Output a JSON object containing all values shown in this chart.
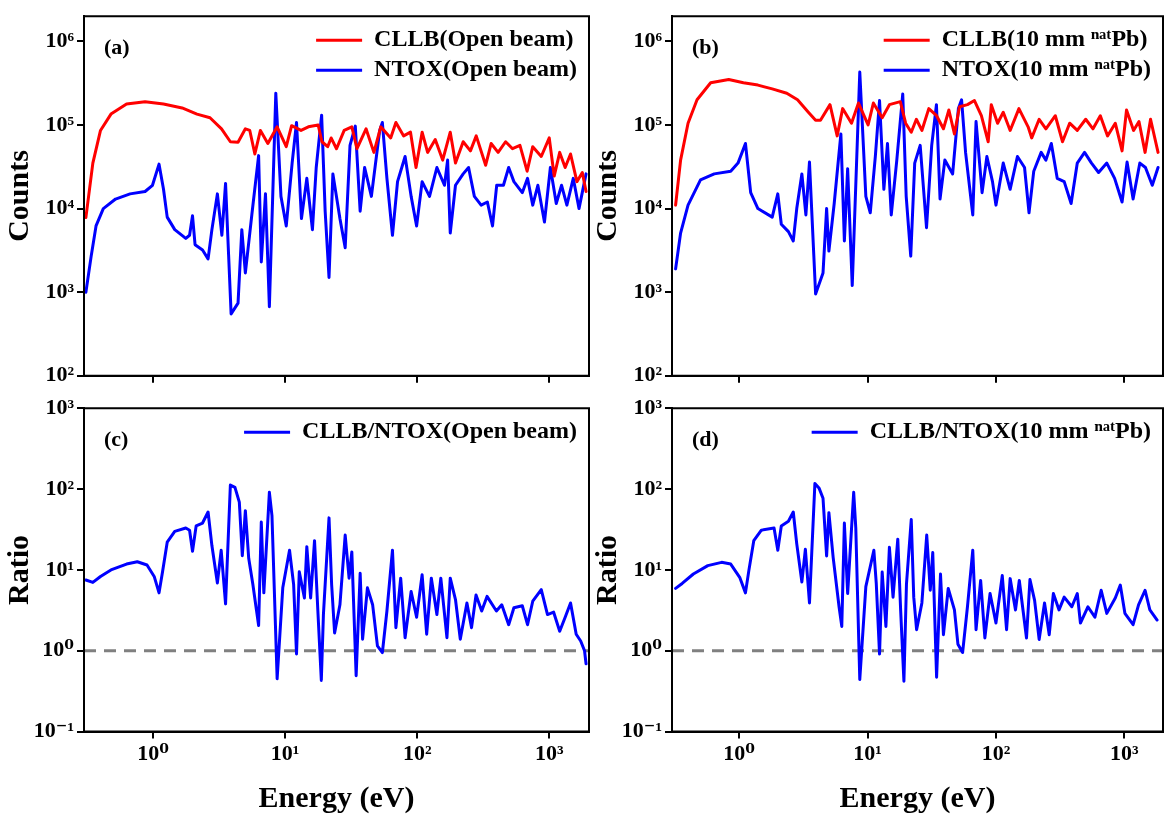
{
  "chart_data": [
    {
      "type": "line",
      "annotations": [
        "(a)"
      ],
      "ylabel": "Counts",
      "log": "xy",
      "legend": "top right",
      "tick_labels": "y",
      "xlim": [
        0.3,
        2000
      ],
      "xticks": [
        {
          "value": 1,
          "label": null
        },
        {
          "value": 10,
          "label": null
        },
        {
          "value": 100,
          "label": null
        },
        {
          "value": 1000,
          "label": null
        }
      ],
      "ylim": [
        100,
        2000000
      ],
      "yticks": [
        {
          "value": 100,
          "label": "10²"
        },
        {
          "value": 1000,
          "label": "10³"
        },
        {
          "value": 10000,
          "label": "10⁴"
        },
        {
          "value": 100000,
          "label": "10⁵"
        },
        {
          "value": 1000000,
          "label": "10⁶"
        }
      ],
      "series": [
        {
          "name": "CLLB(Open beam)",
          "color": "#ff0000",
          "x": [
            0.31,
            0.35,
            0.4,
            0.48,
            0.63,
            0.87,
            1.2,
            1.66,
            2.15,
            2.7,
            3.3,
            3.85,
            4.4,
            5.0,
            5.4,
            5.9,
            6.5,
            7.4,
            8.7,
            10.2,
            11.2,
            13.2,
            15,
            17.8,
            19,
            21,
            22.3,
            24.5,
            28,
            32,
            35,
            41,
            47,
            53,
            63,
            69,
            79,
            89,
            98,
            109,
            120,
            137,
            156,
            178,
            195,
            223,
            253,
            280,
            330,
            363,
            410,
            467,
            527,
            600,
            680,
            750,
            870,
            1000,
            1090,
            1200,
            1320,
            1450,
            1620,
            1780,
            1900
          ],
          "values": [
            7800,
            35000,
            86000,
            135000,
            178000,
            190000,
            178000,
            160000,
            135000,
            122000,
            90000,
            63000,
            62000,
            90000,
            86000,
            45000,
            86000,
            60000,
            95000,
            55000,
            98000,
            86000,
            95000,
            100000,
            63000,
            55000,
            70000,
            52000,
            86000,
            95000,
            52000,
            90000,
            47000,
            95000,
            70000,
            107000,
            74000,
            82000,
            31000,
            82000,
            47000,
            67000,
            38000,
            82000,
            35000,
            63000,
            49000,
            74000,
            33000,
            60000,
            47000,
            63000,
            52000,
            57000,
            28000,
            55000,
            42000,
            70000,
            24500,
            47000,
            31000,
            45000,
            21000,
            27000,
            16000
          ]
        },
        {
          "name": "NTOX(Open beam)",
          "color": "#0000ff",
          "x": [
            0.31,
            0.34,
            0.37,
            0.42,
            0.52,
            0.67,
            0.87,
            0.99,
            1.11,
            1.2,
            1.28,
            1.46,
            1.77,
            1.89,
            1.99,
            2.08,
            2.37,
            2.61,
            2.79,
            3.07,
            3.32,
            3.54,
            3.9,
            4.4,
            4.7,
            5.0,
            5.6,
            6.3,
            6.6,
            7.1,
            7.6,
            8.5,
            9.3,
            10.2,
            11.3,
            12.2,
            13.3,
            14.6,
            16.1,
            17.2,
            18.9,
            20.1,
            21.5,
            23,
            26,
            28.5,
            31,
            34,
            37,
            40,
            45,
            52,
            54.5,
            59,
            65,
            71,
            81,
            90,
            99,
            109,
            124,
            141,
            161,
            170,
            178,
            195,
            223,
            245,
            271,
            305,
            340,
            372,
            400,
            450,
            493,
            540,
            625,
            685,
            750,
            820,
            920,
            1020,
            1130,
            1240,
            1360,
            1520,
            1680,
            1900
          ],
          "values": [
            1000,
            2700,
            6200,
            10000,
            13000,
            15000,
            16000,
            19000,
            34000,
            17000,
            7900,
            5600,
            4400,
            4800,
            8200,
            3700,
            3200,
            2500,
            5600,
            15000,
            4800,
            20000,
            550,
            740,
            5600,
            1700,
            8500,
            43000,
            2300,
            15000,
            670,
            240000,
            14000,
            6200,
            35000,
            107000,
            7600,
            23000,
            5600,
            31000,
            131000,
            9300,
            1500,
            26000,
            7600,
            3400,
            57000,
            97000,
            9300,
            31000,
            14000,
            86000,
            107000,
            23000,
            4800,
            21000,
            42000,
            14000,
            6200,
            21000,
            14000,
            31000,
            19000,
            38000,
            5100,
            19000,
            26000,
            31000,
            14000,
            11000,
            12000,
            6200,
            19000,
            19000,
            31000,
            21000,
            15500,
            23000,
            11000,
            19000,
            6900,
            31000,
            11500,
            19000,
            11000,
            23000,
            10000,
            26000
          ]
        }
      ]
    },
    {
      "type": "line",
      "annotations": [
        "(b)"
      ],
      "ylabel": "Counts",
      "log": "xy",
      "legend": "top right",
      "tick_labels": "y",
      "xlim": [
        0.3,
        2000
      ],
      "xticks": [
        {
          "value": 1,
          "label": null
        },
        {
          "value": 10,
          "label": null
        },
        {
          "value": 100,
          "label": null
        },
        {
          "value": 1000,
          "label": null
        }
      ],
      "ylim": [
        100,
        2000000
      ],
      "yticks": [
        {
          "value": 100,
          "label": "10²"
        },
        {
          "value": 1000,
          "label": "10³"
        },
        {
          "value": 10000,
          "label": "10⁴"
        },
        {
          "value": 100000,
          "label": "10⁵"
        },
        {
          "value": 1000000,
          "label": "10⁶"
        }
      ],
      "series": [
        {
          "name": "CLLB(10 mm ⁿᵃᵗPb)",
          "color": "#ff0000",
          "x": [
            0.32,
            0.35,
            0.4,
            0.47,
            0.6,
            0.83,
            1.08,
            1.4,
            1.81,
            2.35,
            2.85,
            3.46,
            3.94,
            4.3,
            5.1,
            5.8,
            6.4,
            7.5,
            8.5,
            10.1,
            11.1,
            13,
            14.8,
            18,
            19.8,
            21.9,
            24,
            26.5,
            30,
            34.5,
            39,
            43,
            47.5,
            52,
            60,
            68,
            77,
            87,
            92,
            103,
            114,
            129,
            151,
            178,
            190,
            217,
            245,
            290,
            330,
            375,
            430,
            500,
            570,
            650,
            740,
            850,
            960,
            1040,
            1180,
            1300,
            1450,
            1600,
            1830
          ],
          "values": [
            11000,
            38000,
            105000,
            200000,
            320000,
            350000,
            320000,
            300000,
            270000,
            240000,
            200000,
            142000,
            114000,
            114000,
            175000,
            74000,
            157000,
            105000,
            183000,
            100000,
            183000,
            122000,
            175000,
            190000,
            105000,
            82000,
            117000,
            86000,
            157000,
            129000,
            90000,
            151000,
            78000,
            165000,
            175000,
            196000,
            129000,
            63000,
            175000,
            105000,
            142000,
            86000,
            157000,
            95000,
            70000,
            117000,
            90000,
            129000,
            63000,
            105000,
            86000,
            117000,
            90000,
            129000,
            74000,
            105000,
            49000,
            151000,
            86000,
            110000,
            47000,
            117000,
            47000
          ]
        },
        {
          "name": "NTOX(10 mm ⁿᵃᵗPb)",
          "color": "#0000ff",
          "x": [
            0.32,
            0.35,
            0.4,
            0.5,
            0.64,
            0.86,
            0.98,
            1.12,
            1.23,
            1.4,
            1.81,
            2.0,
            2.13,
            2.42,
            2.64,
            2.81,
            3.08,
            3.31,
            3.53,
            3.94,
            4.5,
            4.8,
            5.0,
            5.5,
            6.2,
            6.6,
            7.0,
            7.6,
            8.7,
            9.7,
            10.5,
            11.5,
            12.4,
            13.4,
            14.3,
            15.3,
            16.9,
            18.8,
            20,
            21.7,
            23.3,
            25.7,
            28.8,
            31.6,
            34.4,
            36.7,
            40,
            46,
            51,
            54,
            58,
            66,
            70,
            78,
            85,
            94,
            100,
            114,
            129,
            147,
            167,
            181,
            197,
            225,
            245,
            270,
            300,
            340,
            385,
            430,
            490,
            555,
            630,
            730,
            840,
            960,
            1050,
            1170,
            1320,
            1460,
            1650,
            1830
          ],
          "values": [
            1900,
            5100,
            11000,
            22000,
            26000,
            28000,
            35000,
            60000,
            15500,
            10000,
            7900,
            15000,
            6500,
            5300,
            4100,
            10000,
            26000,
            8400,
            36000,
            950,
            1700,
            10000,
            3100,
            11500,
            78000,
            4100,
            30000,
            1200,
            430000,
            14000,
            8900,
            42000,
            196000,
            17000,
            60000,
            8400,
            38000,
            235000,
            14000,
            2700,
            35000,
            57000,
            5900,
            57000,
            175000,
            13000,
            38000,
            26000,
            157000,
            200000,
            47000,
            8400,
            110000,
            15500,
            42000,
            21000,
            11000,
            35000,
            17000,
            42000,
            31000,
            8900,
            28000,
            47000,
            38000,
            60000,
            23000,
            21000,
            11500,
            35000,
            47000,
            35000,
            27000,
            35000,
            23000,
            12000,
            36000,
            13000,
            35000,
            31000,
            19000,
            31000
          ]
        }
      ]
    },
    {
      "type": "line",
      "annotations": [
        "(c)"
      ],
      "xlabel": "Energy (eV)",
      "ylabel": "Ratio",
      "log": "xy",
      "legend": "top right",
      "xlim": [
        0.3,
        2000
      ],
      "xticks": [
        {
          "value": 1,
          "label": "10⁰"
        },
        {
          "value": 10,
          "label": "10¹"
        },
        {
          "value": 100,
          "label": "10²"
        },
        {
          "value": 1000,
          "label": "10³"
        }
      ],
      "ylim": [
        0.1,
        1000
      ],
      "yticks": [
        {
          "value": 0.1,
          "label": "10⁻¹"
        },
        {
          "value": 1,
          "label": "10⁰"
        },
        {
          "value": 10,
          "label": "10¹"
        },
        {
          "value": 100,
          "label": "10²"
        },
        {
          "value": 1000,
          "label": "10³"
        }
      ],
      "ref_lines": [
        {
          "axis": "y",
          "value": 1,
          "color": "#808080",
          "line_style": "dashed"
        }
      ],
      "series": [
        {
          "name": "CLLB/NTOX(Open beam)",
          "color": "#0000ff",
          "x": [
            0.31,
            0.35,
            0.4,
            0.48,
            0.63,
            0.76,
            0.9,
            1.02,
            1.11,
            1.18,
            1.28,
            1.46,
            1.77,
            1.89,
            1.99,
            2.12,
            2.37,
            2.61,
            2.79,
            3.07,
            3.28,
            3.54,
            3.85,
            4.17,
            4.5,
            4.74,
            5.0,
            5.3,
            5.7,
            6.3,
            6.6,
            6.9,
            7.6,
            7.95,
            8.7,
            9.6,
            10.8,
            11.6,
            12.2,
            12.8,
            14.0,
            14.6,
            15.6,
            16.7,
            17.7,
            18.8,
            19.5,
            21.5,
            22.5,
            23.7,
            26,
            28.5,
            30.5,
            32,
            34.5,
            37,
            38.6,
            42,
            46,
            50,
            54.5,
            59,
            65,
            69,
            75,
            81,
            90,
            99,
            109,
            118,
            128,
            141,
            151,
            168,
            178,
            195,
            212,
            238,
            258,
            279,
            308,
            338,
            398,
            437,
            493,
            540,
            625,
            685,
            750,
            870,
            970,
            1080,
            1200,
            1320,
            1450,
            1600,
            1730,
            1850,
            1900
          ],
          "values": [
            7.5,
            7.0,
            8.3,
            10,
            11.8,
            12.6,
            11.5,
            8.3,
            5.2,
            9.5,
            22,
            30,
            33,
            31,
            17,
            35,
            38,
            52,
            20,
            6.9,
            17.5,
            3.8,
            112,
            105,
            69,
            15,
            54,
            13.9,
            6.6,
            2.05,
            39,
            5.2,
            91,
            47,
            0.45,
            6.0,
            17.5,
            6.6,
            0.91,
            9.5,
            4.5,
            19.4,
            4.5,
            23,
            3.1,
            0.43,
            2.8,
            44,
            6.6,
            1.66,
            3.7,
            27,
            7.9,
            16.7,
            0.49,
            9.1,
            1.39,
            6.0,
            3.7,
            1.15,
            0.95,
            3.1,
            17.5,
            1.93,
            7.9,
            1.45,
            5.4,
            2.6,
            8.7,
            1.6,
            7.9,
            2.8,
            7.9,
            1.45,
            7.9,
            4.3,
            1.39,
            3.9,
            1.93,
            4.9,
            3.1,
            4.7,
            3.1,
            3.7,
            2.1,
            3.4,
            3.6,
            2.1,
            4.1,
            5.7,
            2.8,
            3.0,
            1.74,
            2.6,
            3.9,
            1.6,
            1.32,
            1.0,
            0.69
          ]
        }
      ]
    },
    {
      "type": "line",
      "annotations": [
        "(d)"
      ],
      "xlabel": "Energy (eV)",
      "ylabel": "Ratio",
      "log": "xy",
      "legend": "top right",
      "xlim": [
        0.3,
        2000
      ],
      "xticks": [
        {
          "value": 1,
          "label": "10⁰"
        },
        {
          "value": 10,
          "label": "10¹"
        },
        {
          "value": 100,
          "label": "10²"
        },
        {
          "value": 1000,
          "label": "10³"
        }
      ],
      "ylim": [
        0.1,
        1000
      ],
      "yticks": [
        {
          "value": 0.1,
          "label": "10⁻¹"
        },
        {
          "value": 1,
          "label": "10⁰"
        },
        {
          "value": 10,
          "label": "10¹"
        },
        {
          "value": 100,
          "label": "10²"
        },
        {
          "value": 1000,
          "label": "10³"
        }
      ],
      "ref_lines": [
        {
          "axis": "y",
          "value": 1,
          "color": "#808080",
          "line_style": "dashed"
        }
      ],
      "series": [
        {
          "name": "CLLB/NTOX(10 mm ⁿᵃᵗPb)",
          "color": "#0000ff",
          "x": [
            0.32,
            0.36,
            0.44,
            0.57,
            0.73,
            0.86,
            1.01,
            1.12,
            1.19,
            1.3,
            1.49,
            1.87,
            2.0,
            2.13,
            2.42,
            2.64,
            2.81,
            3.08,
            3.28,
            3.53,
            3.89,
            4.2,
            4.5,
            4.8,
            5.0,
            5.4,
            6.0,
            6.3,
            6.6,
            7.0,
            7.8,
            8.1,
            8.7,
            9.7,
            11.2,
            11.7,
            12.4,
            13.0,
            13.9,
            14.8,
            15.8,
            17.2,
            18.1,
            19.2,
            20.1,
            21.9,
            22.9,
            24.1,
            26.5,
            28.9,
            30.8,
            32.2,
            34.5,
            37,
            39,
            42.5,
            47.5,
            50.6,
            55,
            60,
            66,
            70,
            76,
            82,
            90,
            100,
            112,
            121,
            129,
            142,
            152,
            173,
            184,
            200,
            217,
            239,
            260,
            280,
            310,
            340,
            390,
            430,
            455,
            520,
            590,
            660,
            730,
            850,
            930,
            1010,
            1170,
            1290,
            1450,
            1580,
            1800
          ],
          "values": [
            5.9,
            6.8,
            8.9,
            11.3,
            12.4,
            11.8,
            8.1,
            5.2,
            9.8,
            23,
            31,
            33,
            17.5,
            35,
            40,
            52,
            21,
            7.1,
            18,
            3.9,
            117,
            102,
            77,
            14.9,
            51,
            14.2,
            3.5,
            2.0,
            38,
            5.1,
            91,
            33,
            0.44,
            6.2,
            17.5,
            6.7,
            0.91,
            9.4,
            2.0,
            19,
            4.6,
            24,
            3.2,
            0.42,
            6.7,
            42,
            4.6,
            1.82,
            3.9,
            27,
            5.6,
            16.4,
            0.47,
            8.9,
            1.58,
            5.9,
            3.2,
            1.2,
            0.95,
            3.5,
            17.5,
            1.82,
            7.4,
            1.44,
            5.1,
            2.2,
            8.5,
            1.82,
            7.8,
            3.2,
            7.4,
            1.44,
            7.6,
            4.2,
            1.38,
            3.9,
            1.58,
            5.1,
            3.2,
            4.6,
            3.5,
            5.1,
            2.2,
            3.5,
            2.6,
            5.6,
            2.9,
            4.5,
            6.5,
            2.9,
            2.1,
            3.7,
            5.6,
            3.2,
            2.4
          ]
        }
      ]
    }
  ]
}
